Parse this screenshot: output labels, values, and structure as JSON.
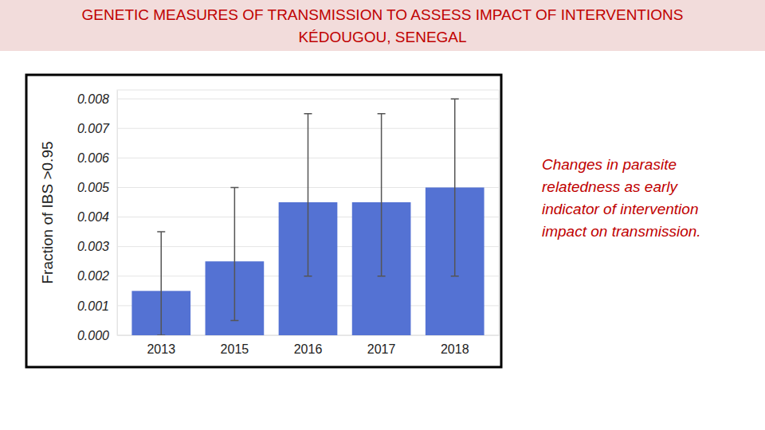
{
  "chart_data": {
    "type": "bar",
    "title": [
      "GENETIC MEASURES OF TRANSMISSION TO ASSESS IMPACT OF INTERVENTIONS",
      "KÉDOUGOU, SENEGAL"
    ],
    "y_label": "Fraction of IBS >0.95",
    "annotation": [
      "Changes in parasite",
      "relatedness as early",
      "indicator of intervention",
      "impact on transmission."
    ],
    "categories": [
      "2013",
      "2015",
      "2016",
      "2017",
      "2018"
    ],
    "values": [
      0.0015,
      0.0025,
      0.0045,
      0.0045,
      0.005
    ],
    "ci_lower": [
      0.0,
      0.0005,
      0.002,
      0.002,
      0.002
    ],
    "ci_upper": [
      0.0035,
      0.005,
      0.0075,
      0.0075,
      0.008
    ],
    "color": "#5472d3",
    "ylim": [
      0,
      0.0083
    ],
    "yticks": [
      {
        "value": 0,
        "label": "0.000"
      },
      {
        "value": 0.001,
        "label": "0.001"
      },
      {
        "value": 0.002,
        "label": "0.002"
      },
      {
        "value": 0.003,
        "label": "0.003"
      },
      {
        "value": 0.004,
        "label": "0.004"
      },
      {
        "value": 0.005,
        "label": "0.005"
      },
      {
        "value": 0.006,
        "label": "0.006"
      },
      {
        "value": 0.007,
        "label": "0.007"
      },
      {
        "value": 0.008,
        "label": "0.008"
      }
    ],
    "grid": true
  }
}
